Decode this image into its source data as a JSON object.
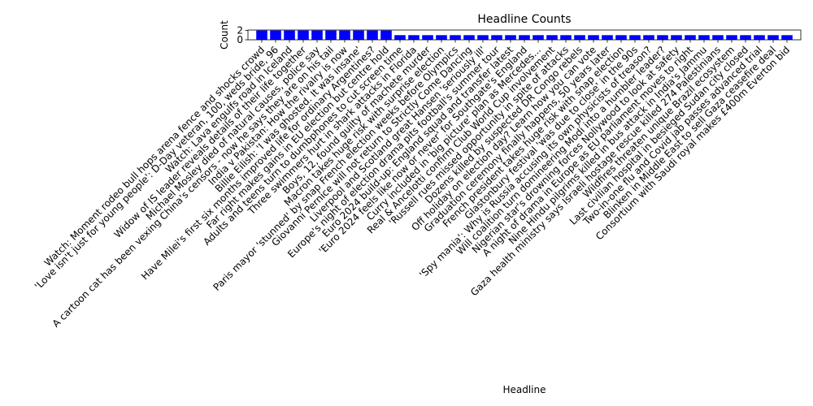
{
  "chart_data": {
    "type": "bar",
    "title": "Headline Counts",
    "xlabel": "Headline",
    "ylabel": "Count",
    "ylim": [
      0,
      2.1
    ],
    "yticks": [
      0,
      2
    ],
    "bar_color": "#0000ff",
    "grid": false,
    "legend": "none",
    "categories": [
      "Watch: Moment rodeo bull hops arena fence and shocks crowd",
      "'Love isn't just for young people': D-Day veteran, 100, weds bride, 96",
      "Watch: Lava engulfs road in Iceland",
      "Widow of IS leader reveals details of their life together",
      "Michael Mosley died of natural causes, police say",
      "A cartoon cat has been vexing China's censors - now he says they are on his tail",
      "India v Pakistan: How the rivalry is now",
      "Billie Eilish: 'I was ghosted. It was insane'",
      "Have Milei's first six months improved life for ordinary Argentines?",
      "Far right makes gains in EU election but centre hold",
      "Adults and teens turn to dumbphones to cut screen time",
      "Three swimmers hurt in shark attacks in Florida",
      "Boys, 12, found guilty of machete murder",
      "Macron takes huge risk with surprise election",
      "Paris mayor 'stunned' by snap French election weeks before Olympics",
      "Giovanni Pernice will not return to Strictly Come Dancing",
      "Liverpool and Scotland great Hansen 'seriously ill'",
      "Europe's night of election drama pits football's summer tour",
      "Euro 2024 build-up: England squad and transfer latest",
      "'Euro 2024 feels like now or never' for Southgate's England",
      "Curry included in 'big picture' plan as Mercedes...",
      "Real & Ancelotti confirm Club World Cup involvement",
      "'Russell rues missed opportunity in spite of attacks",
      "Dozens killed by suspected DR Congo rebels",
      "Off holiday on election day? Learn how you can vote",
      "Graduation ceremony finally happens, 50 years later",
      "French president takes huge risk with snap election",
      "Glastonbury festival 'was due to close' in the 90s",
      "'Spy mania': Why is Russia accusing its own physicists of treason?",
      "Will coalition turn domineering Modi into a humbler leader?",
      "Nigerian star's drowning forces Nollywood to look at safety",
      "A night of drama in Europe as EU parliament moves to right",
      "Nine Hindu pilgrims killed in bus attack in India's Jammu",
      "Gaza health ministry says Israeli hostage rescue killed 274 Palestinians",
      "Wildfires threaten unique Brazil ecosystem",
      "Last civilian hospital in besieged Sudan city closed",
      "Two-in-one flu and Covid jab passes advanced trial",
      "Blinken in Middle East to sell Gaza ceasefire deal",
      "Consortium with Saudi royal makes £400m Everton bid"
    ],
    "values": [
      2,
      2,
      2,
      2,
      2,
      2,
      2,
      2,
      2,
      2,
      1,
      1,
      1,
      1,
      1,
      1,
      1,
      1,
      1,
      1,
      1,
      1,
      1,
      1,
      1,
      1,
      1,
      1,
      1,
      1,
      1,
      1,
      1,
      1,
      1,
      1,
      1,
      1,
      1
    ]
  }
}
